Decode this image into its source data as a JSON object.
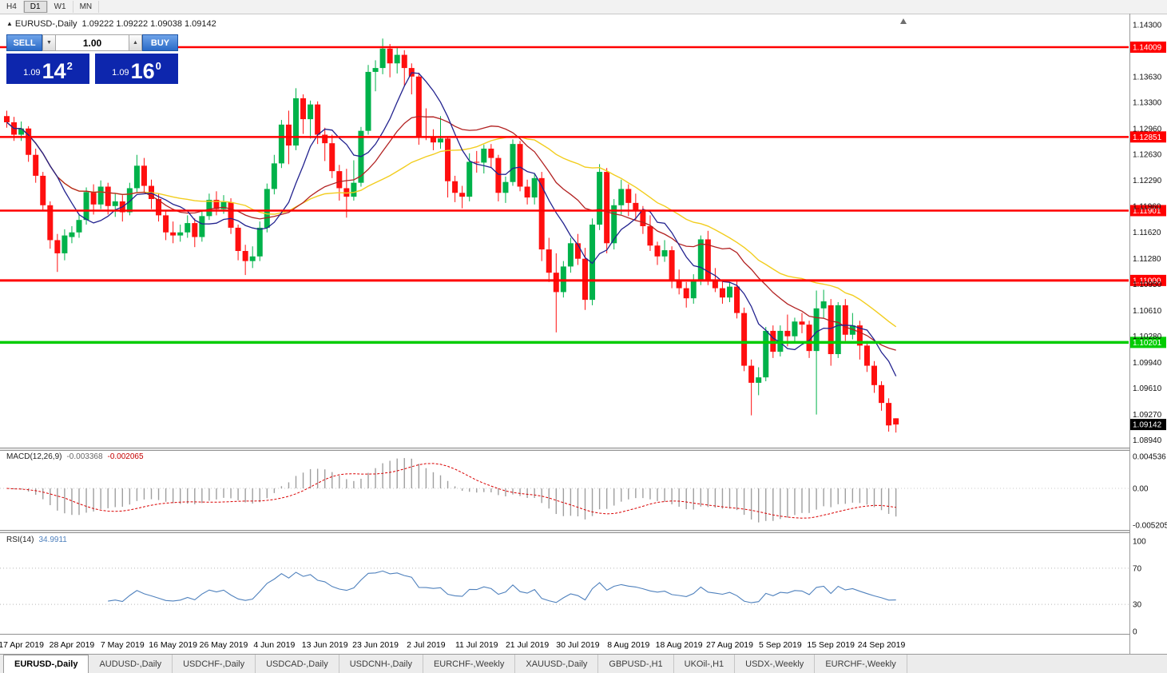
{
  "toolbar": {
    "timeframes": [
      "H4",
      "D1",
      "W1",
      "MN"
    ],
    "active_timeframe": "D1"
  },
  "window_title": {
    "arrow": "▲",
    "symbol": "EURUSD-,Daily",
    "ohlc": "1.09222 1.09222 1.09038 1.09142"
  },
  "trade_panel": {
    "sell_label": "SELL",
    "buy_label": "BUY",
    "volume": "1.00",
    "sell_price": {
      "prefix": "1.09",
      "big": "14",
      "sup": "2"
    },
    "buy_price": {
      "prefix": "1.09",
      "big": "16",
      "sup": "0"
    }
  },
  "chart_data": {
    "type": "candlestick",
    "symbol": "EURUSD",
    "period": "Daily",
    "price_axis_labels": [
      "1.14300",
      "1.13630",
      "1.13300",
      "1.12960",
      "1.12630",
      "1.12290",
      "1.11960",
      "1.11620",
      "1.11280",
      "1.10950",
      "1.10610",
      "1.10280",
      "1.09940",
      "1.09610",
      "1.09270",
      "1.08940"
    ],
    "hlines": [
      {
        "price": 1.14009,
        "label": "1.14009",
        "color": "#ff0000",
        "width": 2.5
      },
      {
        "price": 1.12851,
        "label": "1.12851",
        "color": "#ff0000",
        "width": 2.5
      },
      {
        "price": 1.11901,
        "label": "1.11901",
        "color": "#ff0000",
        "width": 2.5
      },
      {
        "price": 1.11,
        "label": "1.11000",
        "color": "#ff0000",
        "width": 3
      },
      {
        "price": 1.10201,
        "label": "1.10201",
        "color": "#00cc00",
        "width": 3.5
      }
    ],
    "current_price": {
      "value": 1.09142,
      "label": "1.09142"
    },
    "ma_periods": {
      "fast": 8,
      "mid": 20,
      "slow": 34
    },
    "date_labels": [
      [
        2,
        "17 Apr 2019"
      ],
      [
        9,
        "28 Apr 2019"
      ],
      [
        16,
        "7 May 2019"
      ],
      [
        23,
        "16 May 2019"
      ],
      [
        30,
        "26 May 2019"
      ],
      [
        37,
        "4 Jun 2019"
      ],
      [
        44,
        "13 Jun 2019"
      ],
      [
        51,
        "23 Jun 2019"
      ],
      [
        58,
        "2 Jul 2019"
      ],
      [
        65,
        "11 Jul 2019"
      ],
      [
        72,
        "21 Jul 2019"
      ],
      [
        79,
        "30 Jul 2019"
      ],
      [
        86,
        "8 Aug 2019"
      ],
      [
        93,
        "18 Aug 2019"
      ],
      [
        100,
        "27 Aug 2019"
      ],
      [
        107,
        "5 Sep 2019"
      ],
      [
        114,
        "15 Sep 2019"
      ],
      [
        121,
        "24 Sep 2019"
      ]
    ],
    "candles": [
      [
        1.1312,
        1.1319,
        1.1297,
        1.1304
      ],
      [
        1.1304,
        1.1311,
        1.128,
        1.1288
      ],
      [
        1.1288,
        1.1305,
        1.128,
        1.1296
      ],
      [
        1.1296,
        1.1299,
        1.1253,
        1.1262
      ],
      [
        1.1262,
        1.127,
        1.1226,
        1.1235
      ],
      [
        1.1235,
        1.124,
        1.119,
        1.1197
      ],
      [
        1.1197,
        1.1202,
        1.1141,
        1.1152
      ],
      [
        1.1152,
        1.116,
        1.1111,
        1.1135
      ],
      [
        1.1135,
        1.1166,
        1.1126,
        1.1158
      ],
      [
        1.1156,
        1.117,
        1.1148,
        1.1162
      ],
      [
        1.1162,
        1.1186,
        1.1155,
        1.1178
      ],
      [
        1.1178,
        1.122,
        1.1172,
        1.1214
      ],
      [
        1.1214,
        1.1224,
        1.1185,
        1.1198
      ],
      [
        1.1198,
        1.1229,
        1.1192,
        1.1221
      ],
      [
        1.1221,
        1.1226,
        1.1185,
        1.1196
      ],
      [
        1.1196,
        1.1212,
        1.1182,
        1.1202
      ],
      [
        1.1202,
        1.121,
        1.1176,
        1.1188
      ],
      [
        1.1188,
        1.1226,
        1.1184,
        1.1219
      ],
      [
        1.1219,
        1.1262,
        1.1214,
        1.1248
      ],
      [
        1.1248,
        1.1258,
        1.1214,
        1.1222
      ],
      [
        1.1222,
        1.123,
        1.1192,
        1.1205
      ],
      [
        1.1205,
        1.1212,
        1.1176,
        1.1184
      ],
      [
        1.1184,
        1.119,
        1.1152,
        1.1162
      ],
      [
        1.1162,
        1.1176,
        1.1148,
        1.1158
      ],
      [
        1.1158,
        1.1172,
        1.115,
        1.1162
      ],
      [
        1.1162,
        1.1184,
        1.1155,
        1.1174
      ],
      [
        1.1174,
        1.118,
        1.1143,
        1.1156
      ],
      [
        1.1156,
        1.119,
        1.115,
        1.1183
      ],
      [
        1.1183,
        1.1212,
        1.1178,
        1.1204
      ],
      [
        1.1204,
        1.1215,
        1.1184,
        1.1192
      ],
      [
        1.1192,
        1.121,
        1.1186,
        1.1201
      ],
      [
        1.1201,
        1.1206,
        1.116,
        1.1168
      ],
      [
        1.1168,
        1.1172,
        1.1126,
        1.1138
      ],
      [
        1.1138,
        1.1146,
        1.1107,
        1.1125
      ],
      [
        1.1125,
        1.1144,
        1.1116,
        1.1131
      ],
      [
        1.1131,
        1.1176,
        1.1125,
        1.1168
      ],
      [
        1.1168,
        1.1225,
        1.1162,
        1.1218
      ],
      [
        1.1218,
        1.1262,
        1.1211,
        1.1251
      ],
      [
        1.1251,
        1.1307,
        1.1245,
        1.1301
      ],
      [
        1.1301,
        1.1319,
        1.125,
        1.1274
      ],
      [
        1.1274,
        1.1348,
        1.1268,
        1.1335
      ],
      [
        1.1335,
        1.134,
        1.1289,
        1.1308
      ],
      [
        1.1308,
        1.1332,
        1.1283,
        1.1327
      ],
      [
        1.1327,
        1.1331,
        1.1276,
        1.1288
      ],
      [
        1.1288,
        1.1297,
        1.1254,
        1.1277
      ],
      [
        1.1277,
        1.1288,
        1.1232,
        1.1241
      ],
      [
        1.1241,
        1.1249,
        1.1203,
        1.1219
      ],
      [
        1.1219,
        1.1244,
        1.1181,
        1.1208
      ],
      [
        1.1208,
        1.1255,
        1.1203,
        1.1226
      ],
      [
        1.1226,
        1.1298,
        1.1221,
        1.1293
      ],
      [
        1.1293,
        1.1378,
        1.1288,
        1.1369
      ],
      [
        1.1369,
        1.1384,
        1.1344,
        1.1374
      ],
      [
        1.1374,
        1.1412,
        1.1366,
        1.1399
      ],
      [
        1.1399,
        1.1405,
        1.1362,
        1.138
      ],
      [
        1.138,
        1.14,
        1.1367,
        1.1391
      ],
      [
        1.1391,
        1.1397,
        1.1351,
        1.1374
      ],
      [
        1.1374,
        1.138,
        1.134,
        1.1363
      ],
      [
        1.1363,
        1.1368,
        1.1275,
        1.1286
      ],
      [
        1.1286,
        1.1322,
        1.1281,
        1.1285
      ],
      [
        1.1285,
        1.1295,
        1.1268,
        1.1278
      ],
      [
        1.1278,
        1.1312,
        1.127,
        1.1283
      ],
      [
        1.1283,
        1.1286,
        1.1207,
        1.1228
      ],
      [
        1.1228,
        1.1235,
        1.1201,
        1.1213
      ],
      [
        1.1213,
        1.1222,
        1.1193,
        1.1208
      ],
      [
        1.1208,
        1.1264,
        1.1202,
        1.1253
      ],
      [
        1.1253,
        1.1267,
        1.1239,
        1.1252
      ],
      [
        1.1252,
        1.1275,
        1.1238,
        1.127
      ],
      [
        1.127,
        1.1276,
        1.1245,
        1.1258
      ],
      [
        1.1258,
        1.1262,
        1.1202,
        1.1213
      ],
      [
        1.1213,
        1.1234,
        1.12,
        1.1227
      ],
      [
        1.1227,
        1.1282,
        1.1222,
        1.1276
      ],
      [
        1.1276,
        1.128,
        1.1215,
        1.1221
      ],
      [
        1.1221,
        1.123,
        1.1198,
        1.1207
      ],
      [
        1.1207,
        1.1238,
        1.1198,
        1.1232
      ],
      [
        1.1232,
        1.124,
        1.1125,
        1.114
      ],
      [
        1.114,
        1.1155,
        1.1098,
        1.111
      ],
      [
        1.111,
        1.1135,
        1.1033,
        1.1085
      ],
      [
        1.1085,
        1.1125,
        1.1078,
        1.1118
      ],
      [
        1.1118,
        1.1155,
        1.111,
        1.1148
      ],
      [
        1.1148,
        1.116,
        1.112,
        1.1128
      ],
      [
        1.1128,
        1.1142,
        1.1062,
        1.1075
      ],
      [
        1.1075,
        1.118,
        1.1068,
        1.1172
      ],
      [
        1.1172,
        1.125,
        1.1165,
        1.124
      ],
      [
        1.124,
        1.1245,
        1.1135,
        1.1148
      ],
      [
        1.1148,
        1.1205,
        1.114,
        1.1197
      ],
      [
        1.1197,
        1.123,
        1.1185,
        1.1218
      ],
      [
        1.1218,
        1.1224,
        1.1183,
        1.12
      ],
      [
        1.12,
        1.1212,
        1.1178,
        1.119
      ],
      [
        1.119,
        1.1196,
        1.116,
        1.117
      ],
      [
        1.117,
        1.1184,
        1.1138,
        1.1145
      ],
      [
        1.1145,
        1.115,
        1.112,
        1.1131
      ],
      [
        1.1131,
        1.1152,
        1.1124,
        1.1139
      ],
      [
        1.1139,
        1.1144,
        1.109,
        1.11
      ],
      [
        1.11,
        1.1114,
        1.1082,
        1.109
      ],
      [
        1.109,
        1.1098,
        1.1065,
        1.1077
      ],
      [
        1.1077,
        1.1108,
        1.107,
        1.11
      ],
      [
        1.11,
        1.1158,
        1.1094,
        1.1153
      ],
      [
        1.1153,
        1.1164,
        1.1094,
        1.1101
      ],
      [
        1.1101,
        1.1116,
        1.1085,
        1.109
      ],
      [
        1.109,
        1.1098,
        1.107,
        1.1078
      ],
      [
        1.1078,
        1.1098,
        1.1072,
        1.1092
      ],
      [
        1.1092,
        1.11,
        1.1051,
        1.1058
      ],
      [
        1.1058,
        1.1065,
        1.0983,
        1.099
      ],
      [
        1.099,
        1.0998,
        1.0926,
        1.0968
      ],
      [
        1.0968,
        1.0988,
        1.0952,
        1.0975
      ],
      [
        1.0975,
        1.104,
        1.097,
        1.1035
      ],
      [
        1.1035,
        1.1042,
        1.1,
        1.1008
      ],
      [
        1.1008,
        1.1042,
        1.1002,
        1.1035
      ],
      [
        1.1035,
        1.1056,
        1.1015,
        1.1028
      ],
      [
        1.1028,
        1.1052,
        1.102,
        1.1047
      ],
      [
        1.1047,
        1.1058,
        1.1032,
        1.1043
      ],
      [
        1.1043,
        1.1048,
        1.1,
        1.1009
      ],
      [
        1.1009,
        1.1087,
        1.0927,
        1.1064
      ],
      [
        1.1064,
        1.1088,
        1.1052,
        1.1073
      ],
      [
        1.1068,
        1.1076,
        1.099,
        1.1005
      ],
      [
        1.1005,
        1.1072,
        1.1,
        1.1068
      ],
      [
        1.1068,
        1.1076,
        1.1022,
        1.103
      ],
      [
        1.103,
        1.1058,
        1.1024,
        1.1042
      ],
      [
        1.1042,
        1.1048,
        1.0998,
        1.1016
      ],
      [
        1.1016,
        1.1022,
        1.0982,
        1.099
      ],
      [
        1.099,
        1.0996,
        1.0955,
        1.0965
      ],
      [
        1.0965,
        1.097,
        1.0932,
        1.0942
      ],
      [
        1.0942,
        1.0948,
        1.0905,
        1.0913
      ],
      [
        1.09222,
        1.09222,
        1.09038,
        1.09142
      ]
    ]
  },
  "macd_panel": {
    "name": "MACD(12,26,9)",
    "main_value": "-0.003368",
    "signal_value": "-0.002065",
    "axis_labels": [
      "0.004536",
      "0.00",
      "-0.005205"
    ],
    "params": {
      "fast": 12,
      "slow": 26,
      "signal": 9
    }
  },
  "rsi_panel": {
    "name": "RSI(14)",
    "value": "34.9911",
    "period": 14,
    "axis_labels": [
      "100",
      "70",
      "30",
      "0"
    ],
    "levels": [
      70,
      30
    ]
  },
  "tabs": [
    {
      "label": "EURUSD-,Daily",
      "active": true
    },
    {
      "label": "AUDUSD-,Daily",
      "active": false
    },
    {
      "label": "USDCHF-,Daily",
      "active": false
    },
    {
      "label": "USDCAD-,Daily",
      "active": false
    },
    {
      "label": "USDCNH-,Daily",
      "active": false
    },
    {
      "label": "EURCHF-,Weekly",
      "active": false
    },
    {
      "label": "XAUUSD-,Daily",
      "active": false
    },
    {
      "label": "GBPUSD-,H1",
      "active": false
    },
    {
      "label": "UKOil-,H1",
      "active": false
    },
    {
      "label": "USDX-,Weekly",
      "active": false
    },
    {
      "label": "EURCHF-,Weekly",
      "active": false
    }
  ],
  "colors": {
    "bull": "#00b24a",
    "bear": "#ff0f0f",
    "ma_fast": "#23238f",
    "ma_mid": "#b22222",
    "ma_slow": "#f2cd1e",
    "macd_hist": "#9f9f9f",
    "macd_signal": "#d90000",
    "rsi_line": "#4f81bd",
    "badge_current": "#000000",
    "axis_text": "#111111"
  }
}
